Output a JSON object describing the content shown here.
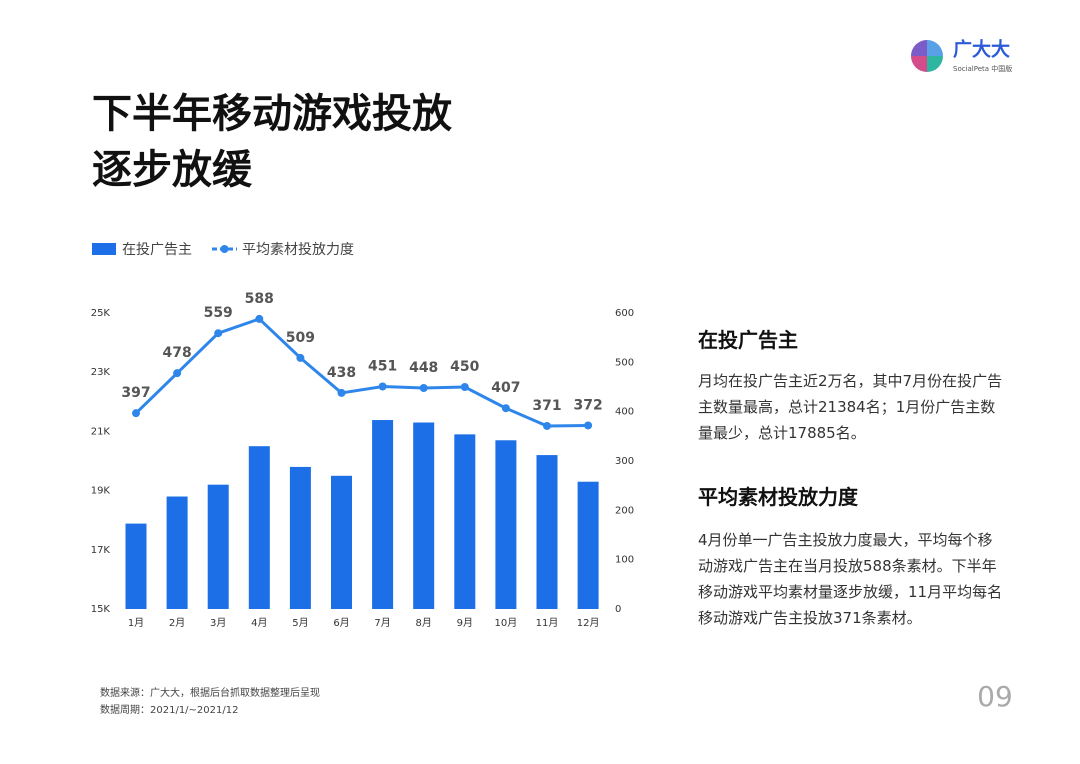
{
  "logo": {
    "name": "广大大",
    "sub": "SocialPeta 中国版"
  },
  "title": [
    "下半年移动游戏投放",
    "逐步放缓"
  ],
  "chart_data": {
    "type": "bar-line",
    "categories": [
      "1月",
      "2月",
      "3月",
      "4月",
      "5月",
      "6月",
      "7月",
      "8月",
      "9月",
      "10月",
      "11月",
      "12月"
    ],
    "series": [
      {
        "name": "在投广告主",
        "color": "#1c6fe6",
        "type": "bar",
        "values": [
          17885,
          18800,
          19200,
          20500,
          19800,
          19500,
          21384,
          21300,
          20900,
          20700,
          20200,
          19300
        ]
      },
      {
        "name": "平均素材投放力度",
        "color": "#2e86ea",
        "type": "line",
        "axis": "y2",
        "values": [
          397,
          478,
          559,
          588,
          509,
          438,
          451,
          448,
          450,
          407,
          371,
          372
        ]
      }
    ],
    "ylim": [
      15000,
      25000
    ],
    "yticks": [
      {
        "value": 15000,
        "label": "15K"
      },
      {
        "value": 17000,
        "label": "17K"
      },
      {
        "value": 19000,
        "label": "19K"
      },
      {
        "value": 21000,
        "label": "21K"
      },
      {
        "value": 23000,
        "label": "23K"
      },
      {
        "value": 25000,
        "label": "25K"
      }
    ],
    "y2lim": [
      0,
      600
    ],
    "y2ticks": [
      0,
      100,
      200,
      300,
      400,
      500,
      600
    ],
    "watermark": "广大大"
  },
  "sidebar": [
    {
      "heading": "在投广告主",
      "text": "月均在投广告主近2万名，其中7月份在投广告主数量最高，总计21384名；1月份广告主数量最少，总计17885名。"
    },
    {
      "heading": "平均素材投放力度",
      "text": "4月份单一广告主投放力度最大，平均每个移动游戏广告主在当月投放588条素材。下半年移动游戏平均素材量逐步放缓，11月平均每名移动游戏广告主投放371条素材。"
    }
  ],
  "footer": {
    "source": "数据来源：广大大，根据后台抓取数据整理后呈现",
    "period": "数据周期：2021/1/~2021/12",
    "page": "09"
  }
}
